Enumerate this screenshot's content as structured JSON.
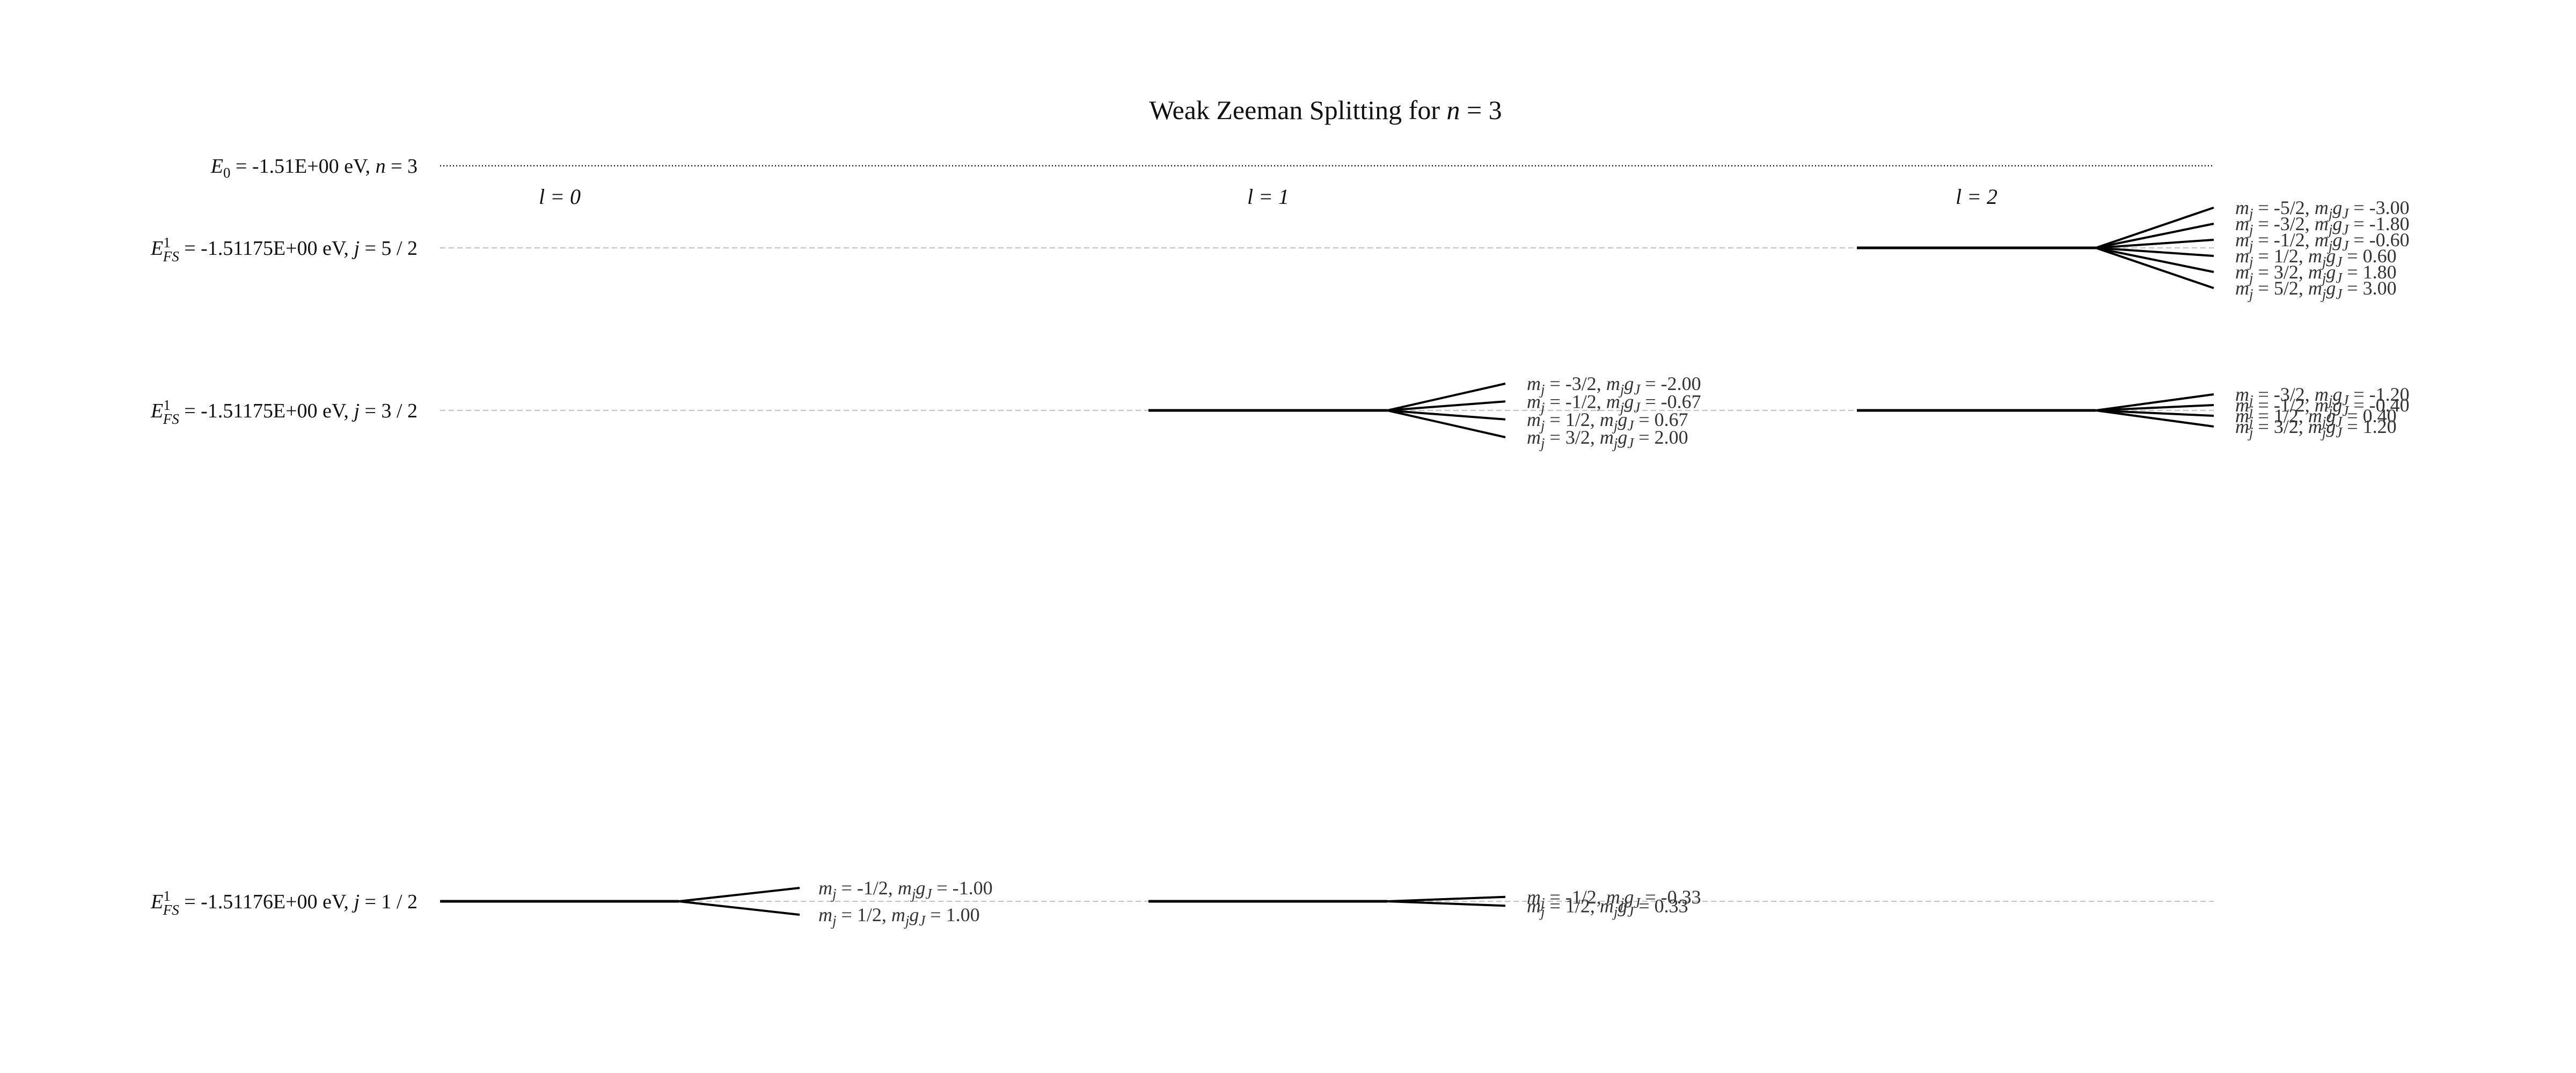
{
  "title": {
    "prefix": "Weak Zeeman Splitting for ",
    "var": "n",
    "suffix": " = 3"
  },
  "e0_label": {
    "pre": "E",
    "sub": "0",
    "rest": " = -1.51E+00 eV, ",
    "var": "n",
    "tail": " = 3"
  },
  "l_headers": [
    "l = 0",
    "l = 1",
    "l = 2"
  ],
  "fs_levels": [
    {
      "energy_text": " = -1.51175E+00 eV, ",
      "j_text": " = 5 / 2",
      "j": 2.5
    },
    {
      "energy_text": " = -1.51175E+00 eV, ",
      "j_text": " = 3 / 2",
      "j": 1.5
    },
    {
      "energy_text": " = -1.51176E+00 eV, ",
      "j_text": " = 1 / 2",
      "j": 0.5
    }
  ],
  "fs_symbol": {
    "base": "E",
    "sup": "1",
    "sub": "FS"
  },
  "chart_data": {
    "type": "energy-level-diagram",
    "n": 3,
    "E0_eV": -1.51,
    "groups": [
      {
        "l": 0,
        "j": "1/2",
        "E_eV": -1.51176,
        "sublevels": [
          {
            "mj": "-1/2",
            "mjgJ": "-1.00"
          },
          {
            "mj": "1/2",
            "mjgJ": "1.00"
          }
        ]
      },
      {
        "l": 1,
        "j": "3/2",
        "E_eV": -1.51175,
        "sublevels": [
          {
            "mj": "-3/2",
            "mjgJ": "-2.00"
          },
          {
            "mj": "-1/2",
            "mjgJ": "-0.67"
          },
          {
            "mj": "1/2",
            "mjgJ": "0.67"
          },
          {
            "mj": "3/2",
            "mjgJ": "2.00"
          }
        ]
      },
      {
        "l": 1,
        "j": "1/2",
        "E_eV": -1.51176,
        "sublevels": [
          {
            "mj": "-1/2",
            "mjgJ": "-0.33"
          },
          {
            "mj": "1/2",
            "mjgJ": "0.33"
          }
        ]
      },
      {
        "l": 2,
        "j": "5/2",
        "E_eV": -1.51175,
        "sublevels": [
          {
            "mj": "-5/2",
            "mjgJ": "-3.00"
          },
          {
            "mj": "-3/2",
            "mjgJ": "-1.80"
          },
          {
            "mj": "-1/2",
            "mjgJ": "-0.60"
          },
          {
            "mj": "1/2",
            "mjgJ": "0.60"
          },
          {
            "mj": "3/2",
            "mjgJ": "1.80"
          },
          {
            "mj": "5/2",
            "mjgJ": "3.00"
          }
        ]
      },
      {
        "l": 2,
        "j": "3/2",
        "E_eV": -1.51175,
        "sublevels": [
          {
            "mj": "-3/2",
            "mjgJ": "-1.20"
          },
          {
            "mj": "-1/2",
            "mjgJ": "-0.40"
          },
          {
            "mj": "1/2",
            "mjgJ": "0.40"
          },
          {
            "mj": "3/2",
            "mjgJ": "1.20"
          }
        ]
      }
    ]
  }
}
